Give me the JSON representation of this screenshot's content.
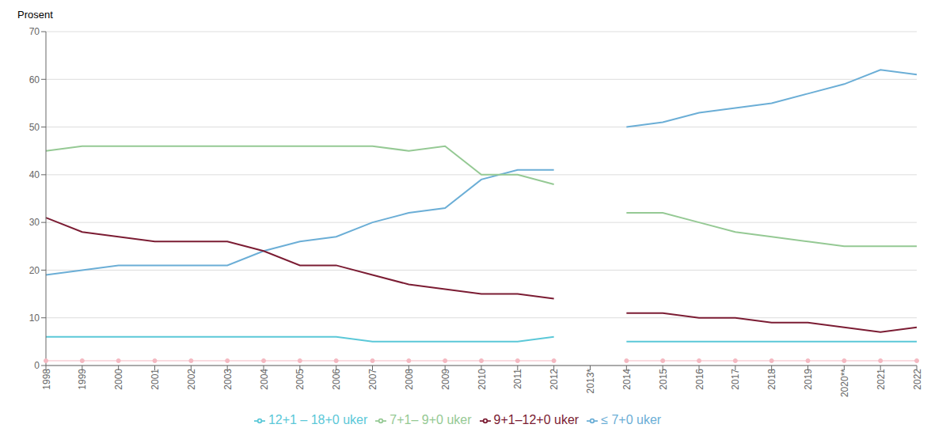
{
  "chart_data": {
    "type": "line",
    "ylabel": "Prosent",
    "categories": [
      "1998",
      "1999",
      "2000",
      "2001",
      "2002",
      "2003",
      "2004",
      "2005",
      "2006",
      "2007",
      "2008",
      "2009",
      "2010",
      "2011",
      "2012",
      "2013*",
      "2014",
      "2015",
      "2016",
      "2017",
      "2018",
      "2019",
      "2020**",
      "2021",
      "2022"
    ],
    "series": [
      {
        "name": "≤ 7+0 uker",
        "color": "#6baed6",
        "marker": "none",
        "values": [
          19,
          20,
          21,
          21,
          21,
          21,
          24,
          26,
          27,
          30,
          32,
          33,
          39,
          41,
          41,
          null,
          50,
          51,
          53,
          54,
          55,
          57,
          59,
          62,
          61
        ]
      },
      {
        "name": "7+1– 9+0 uker",
        "color": "#95c994",
        "marker": "none",
        "values": [
          45,
          46,
          46,
          46,
          46,
          46,
          46,
          46,
          46,
          46,
          45,
          46,
          40,
          40,
          38,
          null,
          32,
          32,
          30,
          28,
          27,
          26,
          25,
          25,
          25
        ]
      },
      {
        "name": "9+1–12+0 uker",
        "color": "#7b1c33",
        "marker": "none",
        "values": [
          31,
          28,
          27,
          26,
          26,
          26,
          24,
          21,
          21,
          19,
          17,
          16,
          15,
          15,
          14,
          null,
          11,
          11,
          10,
          10,
          9,
          9,
          8,
          7,
          8
        ]
      },
      {
        "name": "12+1 – 18+0 uker",
        "color": "#5bc8d8",
        "marker": "none",
        "values": [
          6,
          6,
          6,
          6,
          6,
          6,
          6,
          6,
          6,
          5,
          5,
          5,
          5,
          5,
          6,
          null,
          5,
          5,
          5,
          5,
          5,
          5,
          5,
          5,
          5
        ]
      },
      {
        "color": "#f4b8c1",
        "marker": "circle",
        "values": [
          1,
          1,
          1,
          1,
          1,
          1,
          1,
          1,
          1,
          1,
          1,
          1,
          1,
          1,
          1,
          null,
          1,
          1,
          1,
          1,
          1,
          1,
          1,
          1,
          1
        ]
      }
    ],
    "ylim": [
      0,
      70
    ],
    "yticks": [
      0,
      10,
      20,
      30,
      40,
      50,
      60,
      70
    ],
    "grid": true,
    "legend": "bottom"
  }
}
